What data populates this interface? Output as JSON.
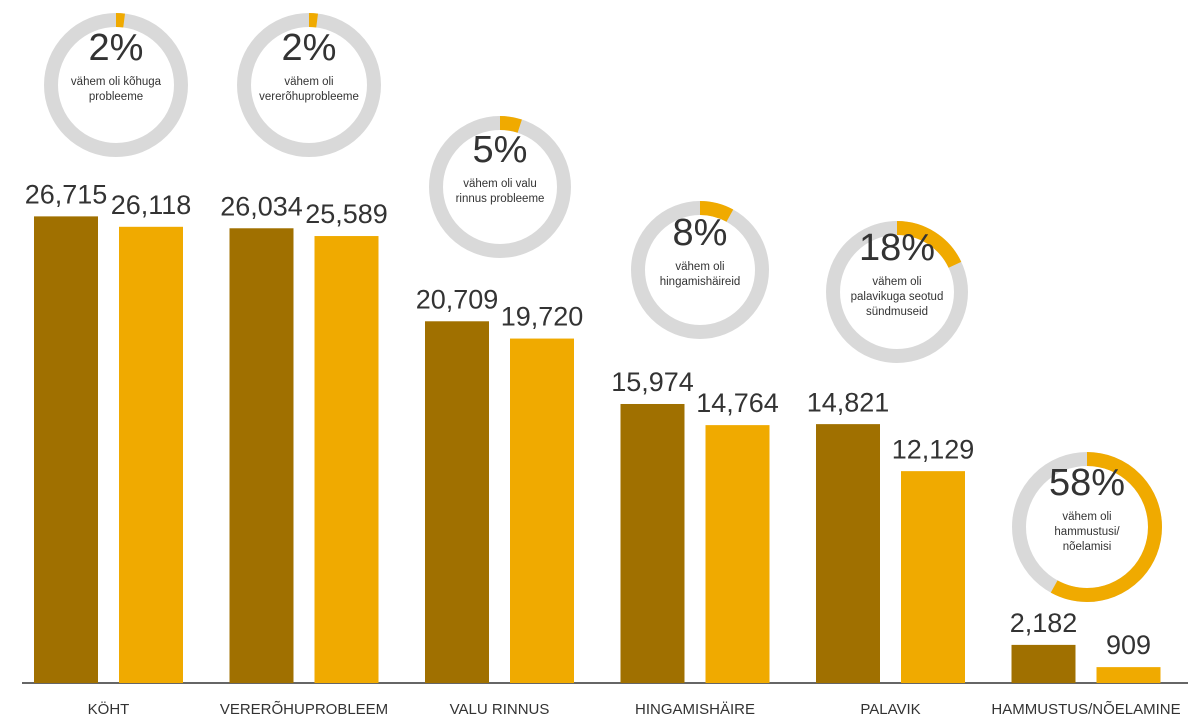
{
  "chart_data": {
    "type": "bar",
    "categories": [
      "KÖHT",
      "VERERÕHUPROBLEEM",
      "VALU RINNUS",
      "HINGAMISHÄIRE",
      "PALAVIK",
      "HAMMUSTUS/NÕELAMINE"
    ],
    "series": [
      {
        "color": "#a07000",
        "values": [
          26715,
          26034,
          20709,
          15974,
          14821,
          2182
        ],
        "value_labels": [
          "26,715",
          "26,034",
          "20,709",
          "15,974",
          "14,821",
          "2,182"
        ]
      },
      {
        "color": "#f0aa00",
        "values": [
          26118,
          25589,
          19720,
          14764,
          12129,
          909
        ],
        "value_labels": [
          "26,118",
          "25,589",
          "19,720",
          "14,764",
          "12,129",
          "909"
        ]
      }
    ],
    "ylim": [
      0,
      30000
    ],
    "donuts": {
      "color": "#f0aa00",
      "track_color": "#d9d9d9",
      "values": [
        2,
        2,
        5,
        8,
        18,
        58
      ],
      "value_labels": [
        "2%",
        "2%",
        "5%",
        "8%",
        "18%",
        "58%"
      ],
      "texts": [
        [
          "vähem oli kõhuga",
          "probleeme"
        ],
        [
          "vähem oli",
          "vererõhuprobleeme"
        ],
        [
          "vähem oli valu",
          "rinnus probleeme"
        ],
        [
          "vähem oli",
          "hingamishäireid"
        ],
        [
          "vähem oli",
          "palavikuga seotud",
          "sündmuseid"
        ],
        [
          "vähem oli",
          "hammustusi/",
          "nõelamisi"
        ]
      ]
    }
  }
}
